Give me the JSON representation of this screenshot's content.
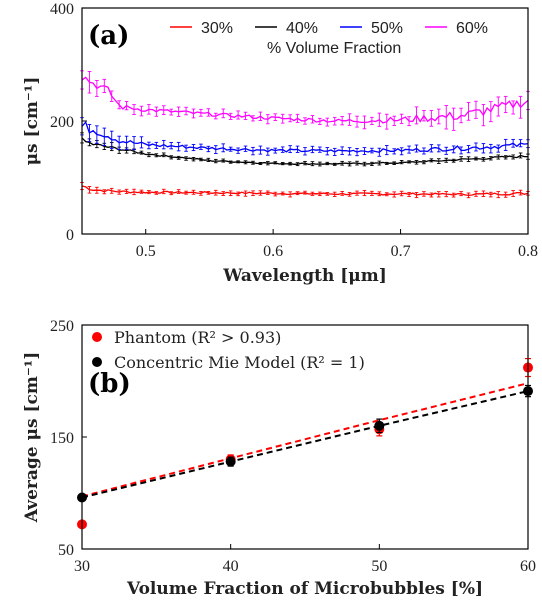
{
  "chart_data": [
    {
      "type": "line",
      "panel_label": "(a)",
      "xlabel": "Wavelength [μm]",
      "ylabel": "μs [cm⁻¹]",
      "xlim": [
        0.45,
        0.8
      ],
      "ylim": [
        0,
        400
      ],
      "xticks": [
        "0.5",
        "0.6",
        "0.7",
        "0.8"
      ],
      "yticks": [
        "0",
        "200",
        "400"
      ],
      "legend_title": "% Volume Fraction",
      "legend_position": "top-right",
      "series": [
        {
          "name": "30%",
          "color": "#ff0000",
          "x": [
            0.45,
            0.46,
            0.48,
            0.5,
            0.55,
            0.6,
            0.65,
            0.7,
            0.75,
            0.8
          ],
          "y": [
            85,
            78,
            75,
            74,
            73,
            72,
            71,
            71,
            70,
            72
          ],
          "err": [
            10,
            6,
            5,
            4,
            4,
            4,
            4,
            4,
            4,
            5
          ]
        },
        {
          "name": "40%",
          "color": "#000000",
          "x": [
            0.45,
            0.46,
            0.48,
            0.5,
            0.55,
            0.6,
            0.65,
            0.7,
            0.75,
            0.8
          ],
          "y": [
            165,
            158,
            150,
            142,
            130,
            125,
            124,
            126,
            132,
            138
          ],
          "err": [
            12,
            8,
            5,
            4,
            3,
            3,
            3,
            3,
            4,
            5
          ]
        },
        {
          "name": "50%",
          "color": "#0000ff",
          "x": [
            0.45,
            0.46,
            0.48,
            0.5,
            0.55,
            0.6,
            0.65,
            0.7,
            0.75,
            0.8
          ],
          "y": [
            190,
            185,
            165,
            158,
            152,
            148,
            147,
            148,
            152,
            158
          ],
          "err": [
            25,
            20,
            12,
            8,
            6,
            6,
            6,
            7,
            9,
            10
          ]
        },
        {
          "name": "60%",
          "color": "#ff00ff",
          "x": [
            0.45,
            0.46,
            0.47,
            0.48,
            0.5,
            0.55,
            0.6,
            0.65,
            0.7,
            0.75,
            0.8
          ],
          "y": [
            280,
            265,
            255,
            225,
            220,
            212,
            205,
            200,
            202,
            210,
            235
          ],
          "err": [
            20,
            15,
            15,
            10,
            8,
            7,
            7,
            8,
            12,
            20,
            18
          ]
        }
      ]
    },
    {
      "type": "scatter",
      "panel_label": "(b)",
      "xlabel": "Volume Fraction of Microbubbles [%]",
      "ylabel": "Average μs [cm⁻¹]",
      "xlim": [
        30,
        60
      ],
      "ylim": [
        50,
        250
      ],
      "xticks": [
        "30",
        "40",
        "50",
        "60"
      ],
      "yticks": [
        "50",
        "150",
        "250"
      ],
      "legend_position": "top-left",
      "series": [
        {
          "name": "Phantom (R² > 0.93)",
          "color": "#ff0000",
          "x": [
            30,
            40,
            50,
            60
          ],
          "y": [
            72,
            130,
            157,
            212
          ],
          "err": [
            0,
            4,
            6,
            8
          ],
          "fit": [
            97,
            131,
            165,
            198
          ]
        },
        {
          "name": "Concentric Mie Model (R² = 1)",
          "color": "#000000",
          "x": [
            30,
            40,
            50,
            60
          ],
          "y": [
            96,
            128,
            160,
            191
          ],
          "err": [
            0,
            4,
            6,
            5
          ],
          "fit": [
            96,
            128,
            160,
            191
          ]
        }
      ]
    }
  ]
}
